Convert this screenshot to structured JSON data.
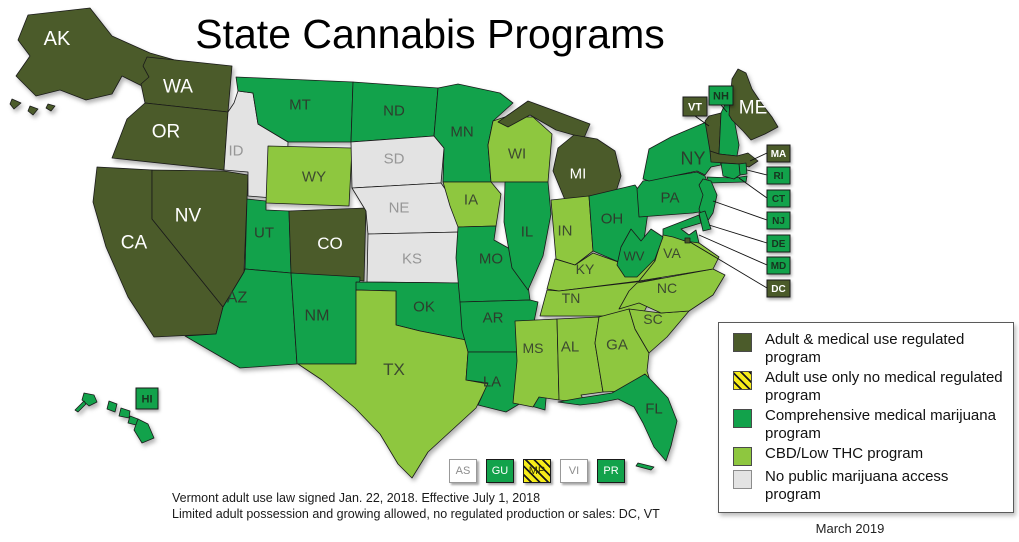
{
  "title": "State Cannabis Programs",
  "date_label": "March 2019",
  "notes": [
    "Vermont adult use law signed Jan. 22, 2018. Effective July 1, 2018",
    "Limited adult possession and growing allowed, no regulated production or sales: DC, VT"
  ],
  "categories": {
    "adult_medical": {
      "label": "Adult & medical use regulated program",
      "color": "#4b5b2a",
      "text_color": "#ffffff"
    },
    "adult_only": {
      "label": "Adult use only no medical regulated program",
      "color": "#f6ec1a",
      "pattern": "hatch",
      "hatch_color": "#1a1a1a",
      "text_color": "#333300"
    },
    "comprehensive": {
      "label": "Comprehensive medical marijuana program",
      "color": "#12a24b",
      "text_color": "#2d3d2d"
    },
    "cbd": {
      "label": "CBD/Low THC program",
      "color": "#8ec73f",
      "text_color": "#3d4a30"
    },
    "no_access": {
      "label": "No public marijuana access program",
      "color": "#e3e3e3",
      "text_color": "#979797"
    }
  },
  "map": {
    "states": [
      {
        "abbr": "AK",
        "category": "adult_medical"
      },
      {
        "abbr": "HI",
        "category": "comprehensive"
      },
      {
        "abbr": "WA",
        "category": "adult_medical"
      },
      {
        "abbr": "OR",
        "category": "adult_medical"
      },
      {
        "abbr": "CA",
        "category": "adult_medical"
      },
      {
        "abbr": "NV",
        "category": "adult_medical"
      },
      {
        "abbr": "ID",
        "category": "no_access"
      },
      {
        "abbr": "MT",
        "category": "comprehensive"
      },
      {
        "abbr": "WY",
        "category": "cbd"
      },
      {
        "abbr": "UT",
        "category": "comprehensive"
      },
      {
        "abbr": "CO",
        "category": "adult_medical"
      },
      {
        "abbr": "AZ",
        "category": "comprehensive"
      },
      {
        "abbr": "NM",
        "category": "comprehensive"
      },
      {
        "abbr": "ND",
        "category": "comprehensive"
      },
      {
        "abbr": "SD",
        "category": "no_access"
      },
      {
        "abbr": "NE",
        "category": "no_access"
      },
      {
        "abbr": "KS",
        "category": "no_access"
      },
      {
        "abbr": "OK",
        "category": "comprehensive"
      },
      {
        "abbr": "TX",
        "category": "cbd"
      },
      {
        "abbr": "MN",
        "category": "comprehensive"
      },
      {
        "abbr": "IA",
        "category": "cbd"
      },
      {
        "abbr": "MO",
        "category": "comprehensive"
      },
      {
        "abbr": "AR",
        "category": "comprehensive"
      },
      {
        "abbr": "LA",
        "category": "comprehensive"
      },
      {
        "abbr": "WI",
        "category": "cbd"
      },
      {
        "abbr": "IL",
        "category": "comprehensive"
      },
      {
        "abbr": "MI",
        "category": "adult_medical"
      },
      {
        "abbr": "IN",
        "category": "cbd"
      },
      {
        "abbr": "OH",
        "category": "comprehensive"
      },
      {
        "abbr": "KY",
        "category": "cbd"
      },
      {
        "abbr": "TN",
        "category": "cbd"
      },
      {
        "abbr": "MS",
        "category": "cbd"
      },
      {
        "abbr": "AL",
        "category": "cbd"
      },
      {
        "abbr": "GA",
        "category": "cbd"
      },
      {
        "abbr": "FL",
        "category": "comprehensive"
      },
      {
        "abbr": "SC",
        "category": "cbd"
      },
      {
        "abbr": "NC",
        "category": "cbd"
      },
      {
        "abbr": "VA",
        "category": "cbd"
      },
      {
        "abbr": "WV",
        "category": "comprehensive"
      },
      {
        "abbr": "PA",
        "category": "comprehensive"
      },
      {
        "abbr": "NY",
        "category": "comprehensive"
      },
      {
        "abbr": "NJ",
        "category": "comprehensive"
      },
      {
        "abbr": "DE",
        "category": "comprehensive"
      },
      {
        "abbr": "MD",
        "category": "comprehensive"
      },
      {
        "abbr": "VT",
        "category": "adult_medical"
      },
      {
        "abbr": "NH",
        "category": "comprehensive"
      },
      {
        "abbr": "ME",
        "category": "adult_medical"
      },
      {
        "abbr": "MA",
        "category": "adult_medical"
      },
      {
        "abbr": "RI",
        "category": "comprehensive"
      },
      {
        "abbr": "CT",
        "category": "comprehensive"
      },
      {
        "abbr": "DC",
        "category": "adult_medical"
      }
    ],
    "callouts": [
      {
        "abbr": "VT",
        "category": "adult_medical"
      },
      {
        "abbr": "NH",
        "category": "comprehensive"
      },
      {
        "abbr": "HI",
        "category": "comprehensive"
      },
      {
        "abbr": "MA",
        "category": "adult_medical"
      },
      {
        "abbr": "RI",
        "category": "comprehensive"
      },
      {
        "abbr": "CT",
        "category": "comprehensive"
      },
      {
        "abbr": "NJ",
        "category": "comprehensive"
      },
      {
        "abbr": "DE",
        "category": "comprehensive"
      },
      {
        "abbr": "MD",
        "category": "comprehensive"
      },
      {
        "abbr": "DC",
        "category": "adult_medical"
      }
    ]
  },
  "territories": [
    {
      "abbr": "AS",
      "fill": "#ffffff",
      "border": "#999999",
      "text_color": "#8c8c8c"
    },
    {
      "abbr": "GU",
      "category": "comprehensive",
      "text_color": "#ffffff"
    },
    {
      "abbr": "MP",
      "category": "adult_only",
      "text_color": "#333300"
    },
    {
      "abbr": "VI",
      "fill": "#ffffff",
      "border": "#999999",
      "text_color": "#8c8c8c"
    },
    {
      "abbr": "PR",
      "category": "comprehensive",
      "text_color": "#ffffff"
    }
  ]
}
